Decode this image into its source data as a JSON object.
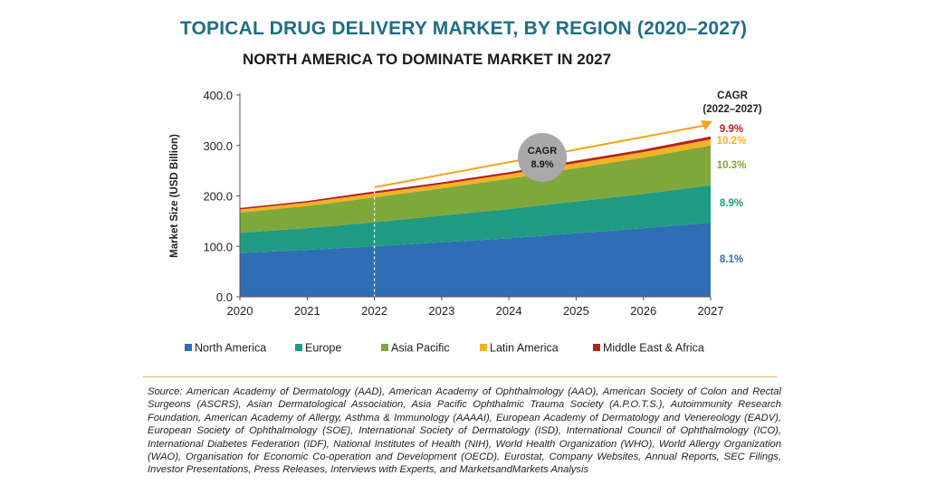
{
  "title": "TOPICAL DRUG DELIVERY MARKET, BY REGION (2020–2027)",
  "subtitle": "NORTH AMERICA TO DOMINATE MARKET IN 2027",
  "colors": {
    "north_america": "#2f6eb5",
    "europe": "#1f9b84",
    "asia_pacific": "#7fa83a",
    "latin_america": "#f4b224",
    "mea": "#b3231e",
    "arrow": "#f6a21c",
    "cagr_circle": "#a9a9a9"
  },
  "cagr_header": [
    "CAGR",
    "(2022–2027)"
  ],
  "cagr_bubble": {
    "label": "CAGR",
    "value": "8.9%"
  },
  "chart_data": {
    "type": "area",
    "stacked": true,
    "x": [
      "2020",
      "2021",
      "2022",
      "2023",
      "2024",
      "2025",
      "2026",
      "2027"
    ],
    "ylabel": "Market Size (USD Billion)",
    "ylim": [
      0,
      400
    ],
    "yticks": [
      "0.0",
      "100.0",
      "200.0",
      "300.0",
      "400.0"
    ],
    "grid": false,
    "legend_position": "bottom",
    "series": [
      {
        "name": "North America",
        "color_key": "north_america",
        "cagr": "8.1%",
        "values": [
          87,
          93,
          100,
          108,
          116,
          126,
          136,
          147
        ]
      },
      {
        "name": "Europe",
        "color_key": "europe",
        "cagr": "8.9%",
        "values": [
          40,
          43,
          48,
          53,
          58,
          63,
          68,
          74
        ]
      },
      {
        "name": "Asia Pacific",
        "color_key": "asia_pacific",
        "cagr": "10.3%",
        "values": [
          40,
          44,
          49,
          54,
          60,
          66,
          72,
          79
        ]
      },
      {
        "name": "Latin America",
        "color_key": "latin_america",
        "cagr": "10.2%",
        "values": [
          6,
          7,
          8,
          8,
          9,
          10,
          11,
          12
        ]
      },
      {
        "name": "Middle East & Africa",
        "color_key": "mea",
        "cagr": "9.9%",
        "values": [
          3,
          3,
          4,
          4,
          4,
          5,
          5,
          6
        ]
      }
    ]
  },
  "source": "Source: American Academy of Dermatology (AAD), American Academy of Ophthalmology (AAO), American Society of Colon and Rectal Surgeons (ASCRS), Asian Dermatological Association, Asia Pacific Ophthalmic Trauma Society (A.P.O.T.S.), Autoimmunity Research Foundation, American Academy of Allergy, Asthma & Immunology (AAAAI), European Academy of Dermatology and Venereology (EADV), European Society of Ophthalmology (SOE), International Society of Dermatology (ISD), International Council of Ophthalmology (ICO), International Diabetes Federation (IDF), National Institutes of Health (NIH), World Health Organization (WHO), World Allergy Organization (WAO), Organisation for Economic Co-operation and Development (OECD), Eurostat, Company Websites, Annual Reports, SEC Filings, Investor Presentations, Press Releases, Interviews with Experts, and MarketsandMarkets Analysis"
}
